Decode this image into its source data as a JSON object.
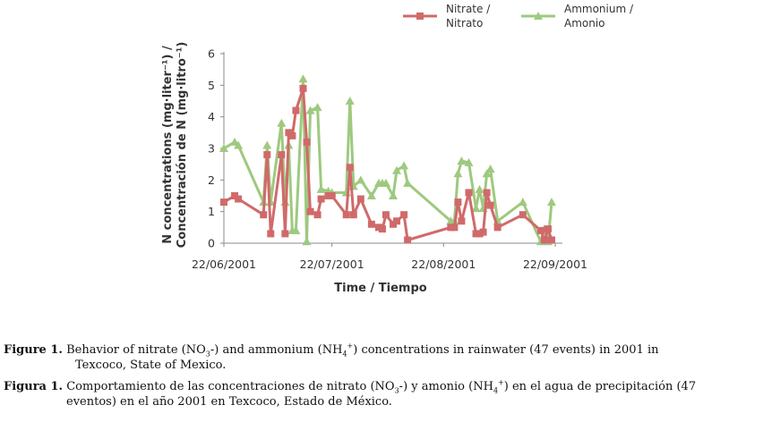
{
  "chart_data": {
    "type": "line",
    "title": "",
    "xlabel": "Time / Tiempo",
    "ylabel_lines": [
      "N concentrations (mg·liter⁻¹) /",
      "Concentración de N (mg·litro⁻¹)"
    ],
    "ylim": [
      0,
      6
    ],
    "yticks": [
      "0",
      "1",
      "2",
      "3",
      "4",
      "5",
      "6"
    ],
    "xlim_day": [
      0,
      92
    ],
    "xticks": [
      {
        "label": "22/06/2001",
        "day": 0
      },
      {
        "label": "22/07/2001",
        "day": 30
      },
      {
        "label": "22/08/2001",
        "day": 61
      },
      {
        "label": "22/09/2001",
        "day": 92
      }
    ],
    "grid": false,
    "legend_position": "top-right",
    "series": [
      {
        "name_lines": [
          "Nitrate /",
          "Nitrato"
        ],
        "color": "#d06a6a",
        "marker": "square",
        "x": [
          0,
          3,
          4,
          11,
          12,
          13,
          16,
          17,
          18,
          19,
          20,
          22,
          23,
          24,
          26,
          27,
          29,
          30,
          34,
          35,
          36,
          38,
          41,
          43,
          44,
          45,
          47,
          48,
          50,
          51,
          63,
          64,
          65,
          66,
          68,
          70,
          71,
          72,
          73,
          74,
          76,
          83,
          88,
          89,
          90,
          91
        ],
        "y": [
          1.3,
          1.5,
          1.4,
          0.9,
          2.8,
          0.3,
          2.8,
          0.3,
          3.5,
          3.4,
          4.2,
          4.9,
          3.2,
          1.0,
          0.9,
          1.4,
          1.5,
          1.5,
          0.9,
          2.4,
          0.9,
          1.4,
          0.6,
          0.5,
          0.45,
          0.9,
          0.6,
          0.7,
          0.9,
          0.1,
          0.5,
          0.5,
          1.3,
          0.7,
          1.6,
          0.3,
          0.3,
          0.35,
          1.6,
          1.2,
          0.5,
          0.9,
          0.4,
          0.1,
          0.45,
          0.1
        ]
      },
      {
        "name_lines": [
          "Ammonium /",
          "Amonio"
        ],
        "color": "#9ec97f",
        "marker": "triangle",
        "x": [
          0,
          3,
          4,
          11,
          12,
          13,
          16,
          17,
          18,
          19,
          20,
          22,
          23,
          24,
          26,
          27,
          29,
          30,
          34,
          35,
          36,
          38,
          41,
          43,
          44,
          45,
          47,
          48,
          50,
          51,
          63,
          64,
          65,
          66,
          68,
          70,
          71,
          72,
          73,
          74,
          76,
          83,
          88,
          89,
          90,
          91
        ],
        "y": [
          3.0,
          3.2,
          3.1,
          1.3,
          3.1,
          1.3,
          3.8,
          1.3,
          3.1,
          0.4,
          0.4,
          5.2,
          0.05,
          4.2,
          4.3,
          1.7,
          1.65,
          1.6,
          1.6,
          4.5,
          1.8,
          2.0,
          1.5,
          1.9,
          1.9,
          1.9,
          1.5,
          2.3,
          2.45,
          1.9,
          0.7,
          0.7,
          2.2,
          2.6,
          2.55,
          1.1,
          1.7,
          1.1,
          2.2,
          2.35,
          0.7,
          1.3,
          0.05,
          0.45,
          0.05,
          1.3
        ]
      }
    ]
  },
  "caption": {
    "en_label": "Figure 1.",
    "en_part1": "Behavior of nitrate (NO",
    "en_sub1": "3",
    "en_part2": "-) and ammonium (NH",
    "en_sub2": "4",
    "en_sup2": "+",
    "en_part3": ") concentrations in rainwater (47 events) in 2001 in",
    "en_line2": "Texcoco, State of Mexico.",
    "es_label": "Figura 1.",
    "es_part1": "Comportamiento de las concentraciones de nitrato (NO",
    "es_sub1": "3",
    "es_part2": "-) y amonio (NH",
    "es_sub2": "4",
    "es_sup2": "+",
    "es_part3": ") en el agua de precipitación (47",
    "es_line2": "eventos) en el año 2001 en Texcoco, Estado de México."
  }
}
